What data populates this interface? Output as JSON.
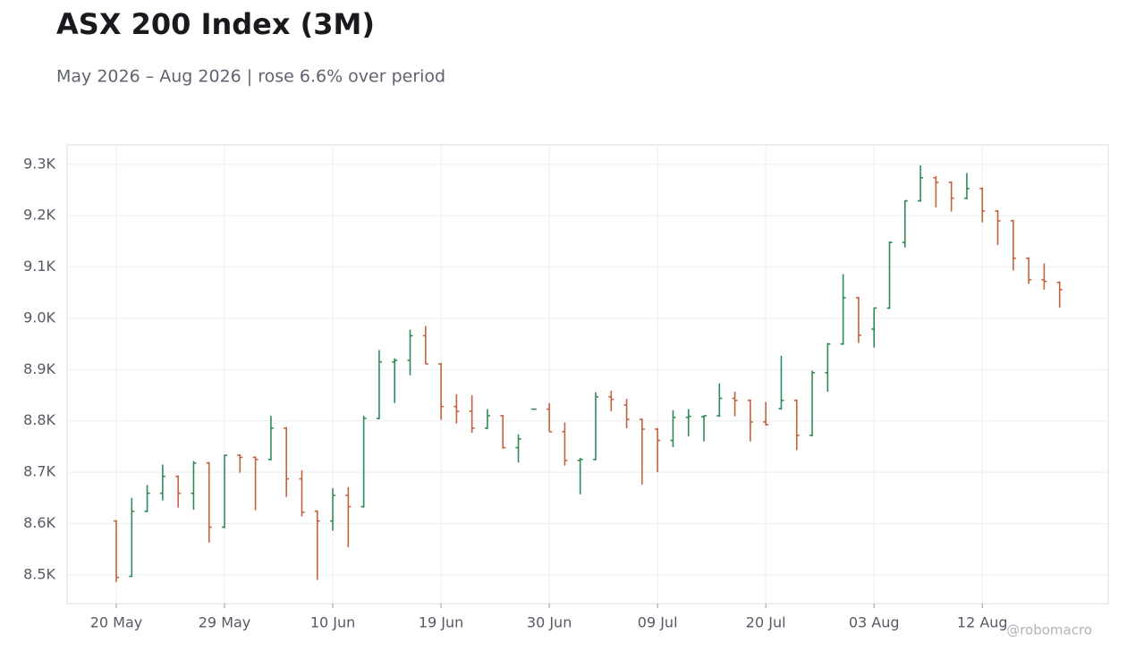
{
  "chart_data": {
    "type": "ohlc",
    "title": "ASX 200 Index (3M)",
    "subtitle": "May 2026 – Aug 2026 | rose 6.6% over period",
    "watermark": "@robomacro",
    "categories": [
      "20 May",
      null,
      null,
      null,
      null,
      null,
      null,
      "29 May",
      null,
      null,
      null,
      null,
      null,
      null,
      "10 Jun",
      null,
      null,
      null,
      null,
      null,
      null,
      "19 Jun",
      null,
      null,
      null,
      null,
      null,
      null,
      "30 Jun",
      null,
      null,
      null,
      null,
      null,
      null,
      "09 Jul",
      null,
      null,
      null,
      null,
      null,
      null,
      "20 Jul",
      null,
      null,
      null,
      null,
      null,
      null,
      "03 Aug",
      null,
      null,
      null,
      null,
      null,
      null,
      "12 Aug",
      null,
      null,
      null,
      null,
      null
    ],
    "open": [
      8605,
      8497,
      8624,
      8659,
      8692,
      8659,
      8718,
      8593,
      8733,
      8729,
      8725,
      8786,
      8687,
      8624,
      8605,
      8655,
      8633,
      8805,
      8915,
      8918,
      8966,
      8911,
      8828,
      8819,
      8786,
      8810,
      8748,
      8823,
      8823,
      8779,
      8723,
      8725,
      8847,
      8831,
      8803,
      8784,
      8762,
      8807,
      8808,
      8810,
      8844,
      8840,
      8798,
      8824,
      8840,
      8772,
      8894,
      8950,
      9040,
      8979,
      9020,
      9148,
      9229,
      9274,
      9265,
      9234,
      9253,
      9209,
      9190,
      9117,
      9075,
      9070
    ],
    "high": [
      8607,
      8650,
      8675,
      8715,
      8694,
      8722,
      8720,
      8734,
      8735,
      8731,
      8810,
      8788,
      8704,
      8626,
      8669,
      8671,
      8810,
      8938,
      8922,
      8978,
      8985,
      8913,
      8852,
      8850,
      8823,
      8812,
      8774,
      8823,
      8835,
      8797,
      8728,
      8856,
      8859,
      8843,
      8805,
      8786,
      8821,
      8823,
      8811,
      8873,
      8857,
      8842,
      8837,
      8927,
      8842,
      8898,
      8952,
      9086,
      9042,
      9021,
      9150,
      9230,
      9298,
      9277,
      9267,
      9283,
      9255,
      9211,
      9192,
      9119,
      9107,
      9072
    ],
    "low": [
      8486,
      8496,
      8622,
      8645,
      8631,
      8627,
      8563,
      8591,
      8699,
      8626,
      8723,
      8652,
      8614,
      8490,
      8586,
      8554,
      8631,
      8803,
      8835,
      8889,
      8911,
      8802,
      8795,
      8777,
      8784,
      8746,
      8719,
      8823,
      8779,
      8713,
      8657,
      8723,
      8819,
      8786,
      8676,
      8700,
      8749,
      8770,
      8760,
      8808,
      8809,
      8760,
      8791,
      8822,
      8743,
      8770,
      8857,
      8948,
      8952,
      8943,
      9018,
      9138,
      9227,
      9216,
      9208,
      9232,
      9187,
      9143,
      9093,
      9067,
      9056,
      9021
    ],
    "close": [
      8495,
      8624,
      8659,
      8692,
      8659,
      8718,
      8593,
      8733,
      8729,
      8725,
      8786,
      8687,
      8622,
      8605,
      8655,
      8633,
      8805,
      8915,
      8918,
      8966,
      8911,
      8828,
      8819,
      8786,
      8810,
      8748,
      8765,
      8823,
      8779,
      8723,
      8725,
      8847,
      8842,
      8803,
      8784,
      8762,
      8807,
      8809,
      8810,
      8844,
      8840,
      8798,
      8793,
      8840,
      8772,
      8894,
      8950,
      9040,
      8967,
      9020,
      9148,
      9229,
      9274,
      9265,
      9234,
      9253,
      9209,
      9190,
      9117,
      9075,
      9072,
      9056
    ],
    "up_color": "#2e8b57",
    "down_color": "#c4623f",
    "ylim": [
      8444,
      9338
    ],
    "yticks": [
      {
        "value": 8500,
        "label": "8.5K"
      },
      {
        "value": 8600,
        "label": "8.6K"
      },
      {
        "value": 8700,
        "label": "8.7K"
      },
      {
        "value": 8800,
        "label": "8.8K"
      },
      {
        "value": 8900,
        "label": "8.9K"
      },
      {
        "value": 9000,
        "label": "9.0K"
      },
      {
        "value": 9100,
        "label": "9.1K"
      },
      {
        "value": 9200,
        "label": "9.2K"
      },
      {
        "value": 9300,
        "label": "9.3K"
      }
    ],
    "grid": true
  }
}
